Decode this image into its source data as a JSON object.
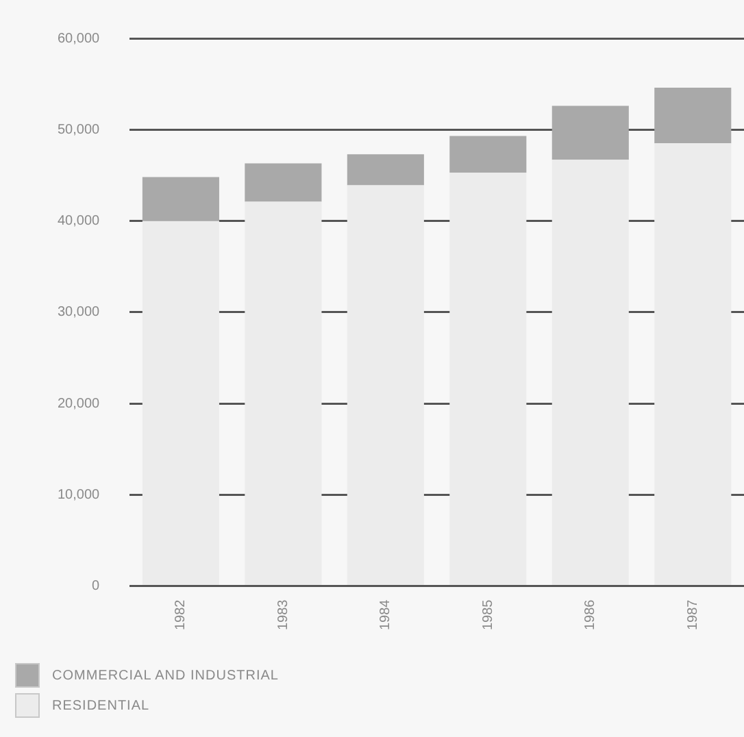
{
  "chart_data": {
    "type": "bar",
    "stacked": true,
    "categories": [
      "1982",
      "1983",
      "1984",
      "1985",
      "1986",
      "1987"
    ],
    "series": [
      {
        "name": "RESIDENTIAL",
        "color": "#ececec",
        "values": [
          40000,
          42100,
          43900,
          45300,
          46700,
          48500
        ]
      },
      {
        "name": "COMMERCIAL AND INDUSTRIAL",
        "color": "#a9a9a9",
        "values": [
          4800,
          4200,
          3400,
          4000,
          5900,
          6100
        ]
      }
    ],
    "ylim": [
      0,
      60000
    ],
    "yticks": [
      {
        "value": 0,
        "label": "0"
      },
      {
        "value": 10000,
        "label": "10,000"
      },
      {
        "value": 20000,
        "label": "20,000"
      },
      {
        "value": 30000,
        "label": "30,000"
      },
      {
        "value": 40000,
        "label": "40,000"
      },
      {
        "value": 50000,
        "label": "50,000"
      },
      {
        "value": 60000,
        "label": "60,000"
      }
    ],
    "grid": "y",
    "legend": "bottom left"
  }
}
